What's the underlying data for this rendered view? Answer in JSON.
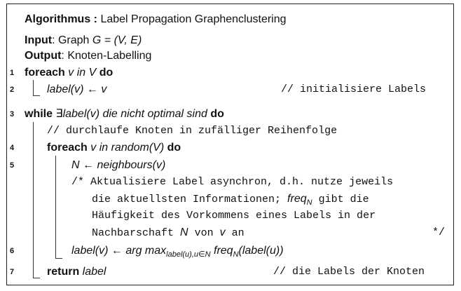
{
  "algorithm": {
    "keyword": "Algorithmus :",
    "title": "Label Propagation Graphenclustering",
    "input_kw": "Input",
    "input_rest": ": Graph ",
    "input_math": "G = (V, E)",
    "output_kw": "Output",
    "output_rest": ": Knoten-Labelling"
  },
  "lines": {
    "n1": "1",
    "n2": "2",
    "n3": "3",
    "n4": "4",
    "n5": "5",
    "n6": "6",
    "n7": "7",
    "l1_kw": "foreach",
    "l1_mid": " v in V ",
    "l1_do": "do",
    "l2_code": "label(v) ← v",
    "l2_comment": "// initialisiere Labels",
    "l3_kw": "while",
    "l3_mid": " ∃label(v) die nicht optimal sind ",
    "l3_do": "do",
    "c1": "// durchlaufe Knoten in zufälliger Reihenfolge",
    "l4_kw": "foreach",
    "l4_mid": " v in random(V) ",
    "l4_do": "do",
    "l5_code": "N ← neighbours(v)",
    "c2_a": "/* Aktualisiere Label asynchron, d.h. nutze jeweils",
    "c2_b1": "die aktuellsten Informationen; ",
    "c2_b_freq": "freq",
    "c2_b_sub": "N",
    "c2_b2": " gibt die",
    "c2_c": "Häufigkeit des Vorkommens eines Labels in der",
    "c2_d1": "Nachbarschaft ",
    "c2_d_N": "N",
    "c2_d2": " von ",
    "c2_d_v": "v",
    "c2_d3": " an",
    "c2_end": "*/",
    "l6_a": "label(v) ← arg max",
    "l6_sub": "label(u),u∈N",
    "l6_b": " freq",
    "l6_sub2": "N",
    "l6_c": "(label(u))",
    "l7_kw": "return",
    "l7_rest": " label",
    "l7_comment": "// die Labels der Knoten"
  }
}
